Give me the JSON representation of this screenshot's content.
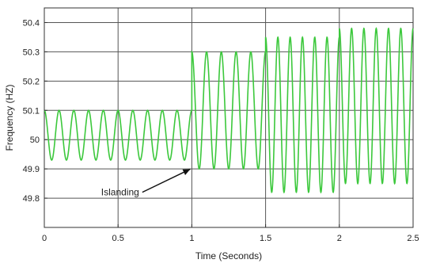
{
  "chart_data": {
    "type": "line",
    "xlabel": "Time (Seconds)",
    "ylabel": "Frequency (HZ)",
    "xlim": [
      0,
      2.5
    ],
    "ylim": [
      49.7,
      50.45
    ],
    "grid": true,
    "x_ticks": [
      {
        "value": 0,
        "label": "0"
      },
      {
        "value": 0.5,
        "label": "0.5"
      },
      {
        "value": 1,
        "label": "1"
      },
      {
        "value": 1.5,
        "label": "1.5"
      },
      {
        "value": 2,
        "label": "2"
      },
      {
        "value": 2.5,
        "label": "2.5"
      }
    ],
    "y_ticks": [
      {
        "value": 49.8,
        "label": "49.8"
      },
      {
        "value": 49.9,
        "label": "49.9"
      },
      {
        "value": 50.0,
        "label": "50"
      },
      {
        "value": 50.1,
        "label": "50.1"
      },
      {
        "value": 50.2,
        "label": "50.2"
      },
      {
        "value": 50.3,
        "label": "50.3"
      },
      {
        "value": 50.4,
        "label": "50.4"
      }
    ],
    "series": [
      {
        "color": "#3cc83c",
        "segments": [
          {
            "x_start": 0,
            "x_end": 1.0,
            "cycles": 10,
            "min": 49.93,
            "max": 50.1
          },
          {
            "x_start": 1.0,
            "x_end": 1.5,
            "cycles": 5,
            "min": 49.9,
            "max": 50.3
          },
          {
            "x_start": 1.5,
            "x_end": 2.0,
            "cycles": 6,
            "min": 49.82,
            "max": 50.35
          },
          {
            "x_start": 2.0,
            "x_end": 2.5,
            "cycles": 6,
            "min": 49.85,
            "max": 50.38
          }
        ]
      }
    ],
    "annotations": [
      {
        "text": "Islanding",
        "arrow_to": {
          "x": 1.0,
          "y": 49.91
        }
      }
    ]
  }
}
